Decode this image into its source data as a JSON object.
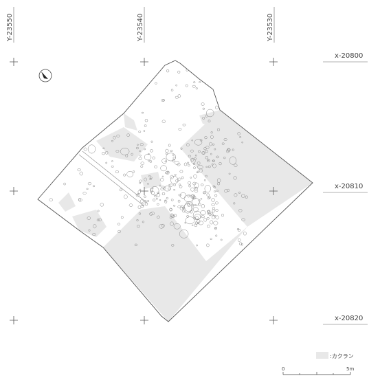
{
  "grid_labels": {
    "y": [
      "Y-23550",
      "Y-23540",
      "Y-23530"
    ],
    "x": [
      "x-20800",
      "x-20810",
      "x-20820"
    ]
  },
  "legend": {
    "label": ":カクラン"
  },
  "scale": {
    "start": "0",
    "end": "5m"
  }
}
